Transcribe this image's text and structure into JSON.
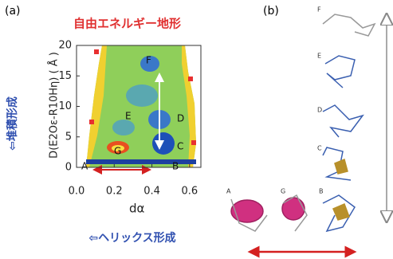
{
  "panel_a": {
    "label": "(a)",
    "title": "自由エネルギー地形",
    "y_axis_label": "D(E2Oε-R10Hη) ( Å )",
    "y_note": "⇦堆積形成",
    "x_axis_label": "dα",
    "x_note": "⇦ヘリックス形成",
    "xlim": [
      0,
      0.66
    ],
    "xticks": [
      {
        "value": 0,
        "label": "0.0"
      },
      0.2,
      0.4,
      0.6
    ],
    "ylim": [
      0,
      20
    ],
    "yticks": [
      0,
      5,
      10,
      15,
      20
    ],
    "state_labels": [
      "A",
      "B",
      "C",
      "D",
      "E",
      "F",
      "G"
    ]
  },
  "panel_b": {
    "label": "(b)",
    "structure_labels": [
      "F",
      "E",
      "D",
      "C",
      "A",
      "G",
      "B"
    ]
  }
}
